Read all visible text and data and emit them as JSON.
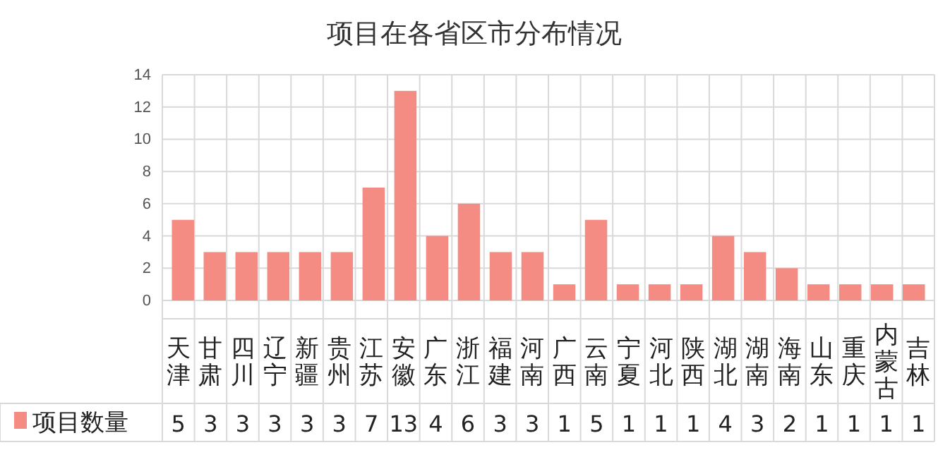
{
  "chart_data": {
    "type": "bar",
    "title": "项目在各省区市分布情况",
    "categories": [
      "天津",
      "甘肃",
      "四川",
      "辽宁",
      "新疆",
      "贵州",
      "江苏",
      "安徽",
      "广东",
      "浙江",
      "福建",
      "河南",
      "广西",
      "云南",
      "宁夏",
      "河北",
      "陕西",
      "湖北",
      "湖南",
      "海南",
      "山东",
      "重庆",
      "内蒙古",
      "吉林"
    ],
    "series": [
      {
        "name": "项目数量",
        "color": "#f58c84",
        "values": [
          5,
          3,
          3,
          3,
          3,
          3,
          7,
          13,
          4,
          6,
          3,
          3,
          1,
          5,
          1,
          1,
          1,
          4,
          3,
          2,
          1,
          1,
          1,
          1
        ]
      }
    ],
    "ylim": [
      0,
      14
    ],
    "yticks": [
      0,
      2,
      4,
      6,
      8,
      10,
      12,
      14
    ],
    "grid": true,
    "legend": "bottom left",
    "data_labels": true
  }
}
